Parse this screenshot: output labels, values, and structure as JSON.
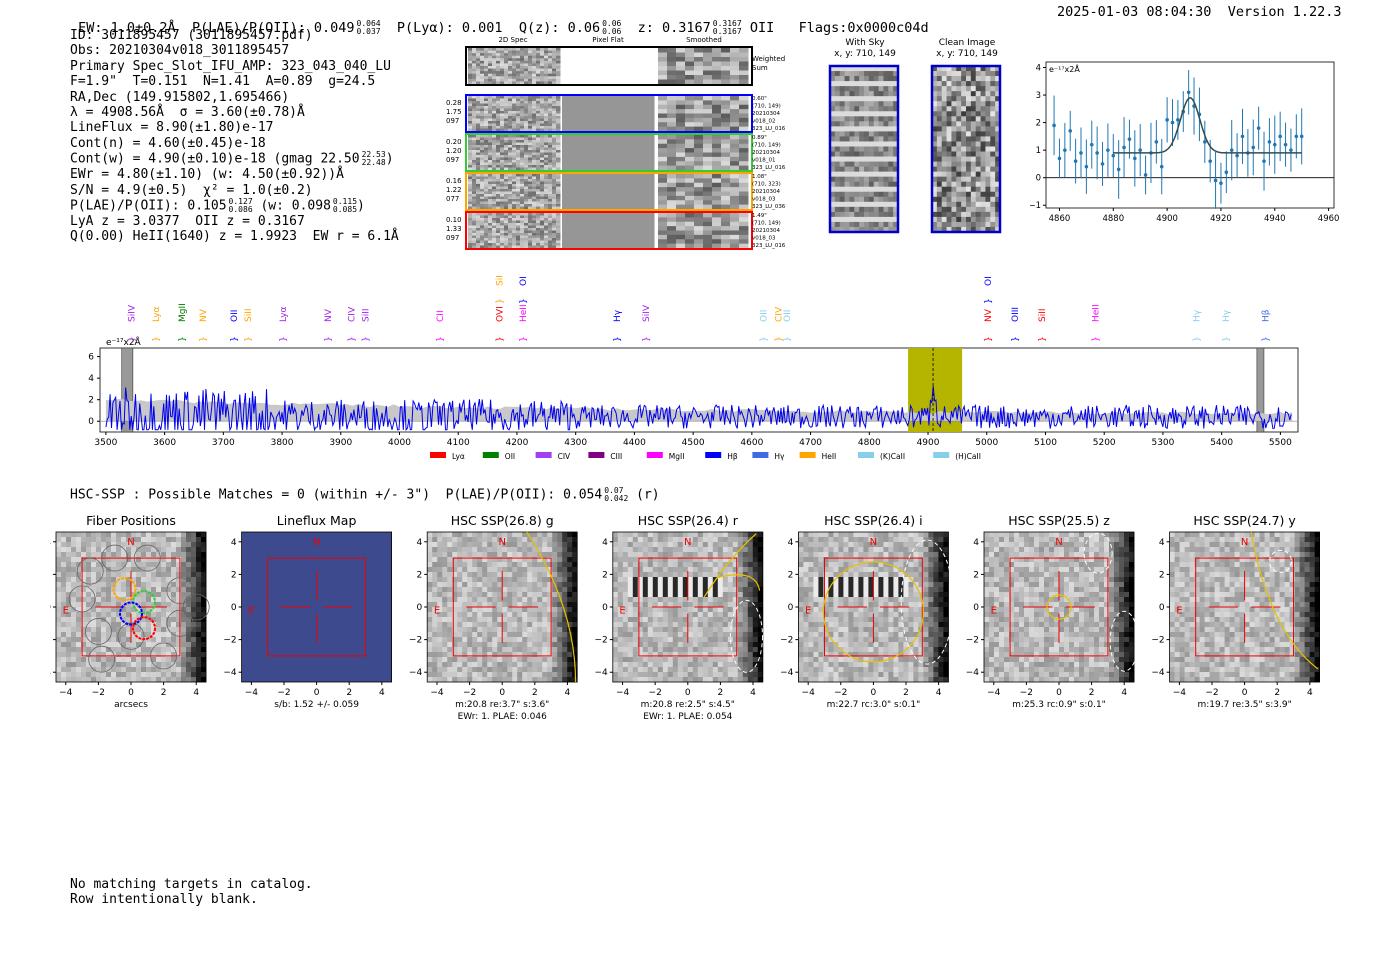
{
  "header": {
    "ew": "EW: 1.0±0.2Å",
    "plae_label": "P(LAE)/P(OII): 0.049",
    "plae_hi": "0.064",
    "plae_lo": "0.037",
    "plya": "P(Lyα): 0.001",
    "qz_label": "Q(z): 0.06",
    "qz_hi": "0.06",
    "qz_lo": "0.06",
    "z_label": "z: 0.3167",
    "z_hi": "0.3167",
    "z_lo": "0.3167",
    "z_line": "OII",
    "flags": "Flags:0x0000c04d",
    "datetime": "2025-01-03 08:04:30",
    "version": "Version 1.22.3"
  },
  "info": {
    "l1": "ID: 3011895457 (3011895457.pdf)",
    "l2": "Obs: 20210304v018_3011895457",
    "l3": "Primary Spec_Slot_IFU_AMP: 323_043_040_LU",
    "l4": "F=1.9\"  T=0.151  N=1.41  A=0.89  g=24.5",
    "l5": "RA,Dec (149.915802,1.695466)",
    "l6": "λ = 4908.56Å  σ = 3.60(±0.78)Å",
    "l7": "LineFlux = 8.90(±1.80)e-17",
    "l8": "Cont(n) = 4.60(±0.45)e-18",
    "l9": "Cont(w) = 4.90(±0.10)e-18 (gmag 22.50",
    "l9_hi": "22.53",
    "l9_lo": "22.48",
    "l9_end": ")",
    "l10": "EWr = 4.80(±1.10) (w: 4.50(±0.92))Å",
    "l11": "S/N = 4.9(±0.5)  χ² = 1.0(±0.2)",
    "l12": "P(LAE)/P(OII): 0.105",
    "l12_hi": "0.127",
    "l12_lo": "0.086",
    "l12_mid": " (w: 0.098",
    "l12_hi2": "0.115",
    "l12_lo2": "0.085",
    "l12_end": ")",
    "l13": "LyA z = 3.0377  OII z = 0.3167",
    "l14": "Q(0.00) HeII(1640) z = 1.9923  EW r = 6.1Å"
  },
  "cutouts": {
    "col_titles": [
      "2D Spec",
      "Pixel Flat",
      "Smoothed"
    ],
    "weighted_label": "Weighted\nSum",
    "rows": [
      {
        "color": "#0000ff",
        "left": [
          "0.28",
          "1.75",
          "097"
        ],
        "right": [
          "0.60\"",
          "(710, 149)",
          "20210304",
          "v018_02",
          "323_LU_016"
        ]
      },
      {
        "color": "#33cc33",
        "left": [
          "0.20",
          "1.20",
          "097"
        ],
        "right": [
          "0.89\"",
          "(710, 149)",
          "20210304",
          "v018_01",
          "323_LU_016"
        ]
      },
      {
        "color": "#ffa500",
        "left": [
          "0.16",
          "1.22",
          "077"
        ],
        "right": [
          "1.08\"",
          "(710, 323)",
          "20210304",
          "v018_03",
          "323_LU_036"
        ]
      },
      {
        "color": "#ff0000",
        "left": [
          "0.10",
          "1.33",
          "097"
        ],
        "right": [
          "1.49\"",
          "(710, 149)",
          "20210304",
          "v018_03",
          "323_LU_016"
        ]
      }
    ]
  },
  "sky": {
    "title1": "With Sky",
    "sub1": "x, y: 710, 149",
    "title2": "Clean Image",
    "sub2": "x, y: 710, 149"
  },
  "fit_chart": {
    "type": "line",
    "ylabel": "e⁻¹⁷x2Å",
    "xlim": [
      4855,
      4962
    ],
    "ylim": [
      -1.1,
      4.2
    ],
    "xticks": [
      4860,
      4880,
      4900,
      4920,
      4940,
      4960
    ],
    "yticks": [
      -1,
      0,
      1,
      2,
      3,
      4
    ],
    "points": [
      [
        4858,
        1.9
      ],
      [
        4860,
        0.7
      ],
      [
        4862,
        1.0
      ],
      [
        4864,
        1.7
      ],
      [
        4866,
        0.6
      ],
      [
        4868,
        0.9
      ],
      [
        4870,
        0.4
      ],
      [
        4872,
        1.2
      ],
      [
        4874,
        0.9
      ],
      [
        4876,
        0.5
      ],
      [
        4878,
        1.0
      ],
      [
        4880,
        0.8
      ],
      [
        4882,
        0.3
      ],
      [
        4884,
        1.1
      ],
      [
        4886,
        1.4
      ],
      [
        4888,
        0.7
      ],
      [
        4890,
        1.0
      ],
      [
        4892,
        0.1
      ],
      [
        4894,
        0.9
      ],
      [
        4896,
        1.3
      ],
      [
        4898,
        0.4
      ],
      [
        4900,
        2.1
      ],
      [
        4902,
        2.0
      ],
      [
        4904,
        2.1
      ],
      [
        4906,
        2.4
      ],
      [
        4908,
        3.1
      ],
      [
        4910,
        2.6
      ],
      [
        4912,
        2.3
      ],
      [
        4914,
        1.3
      ],
      [
        4916,
        0.6
      ],
      [
        4918,
        -0.1
      ],
      [
        4920,
        -0.2
      ],
      [
        4922,
        0.2
      ],
      [
        4924,
        1.0
      ],
      [
        4926,
        0.8
      ],
      [
        4928,
        1.5
      ],
      [
        4930,
        0.9
      ],
      [
        4932,
        1.1
      ],
      [
        4934,
        1.8
      ],
      [
        4936,
        0.6
      ],
      [
        4938,
        1.3
      ],
      [
        4940,
        1.2
      ],
      [
        4942,
        1.5
      ],
      [
        4944,
        1.2
      ],
      [
        4946,
        1.0
      ],
      [
        4948,
        1.5
      ],
      [
        4950,
        1.5
      ]
    ],
    "fit": {
      "center": 4908.56,
      "sigma": 3.6,
      "amp": 2.0,
      "base": 0.9
    }
  },
  "spectrum": {
    "type": "line",
    "ylabel": "e⁻¹⁷x2Å",
    "xlim": [
      3490,
      5530
    ],
    "ylim": [
      -1,
      6.8
    ],
    "xticks": [
      3500,
      3600,
      3700,
      3800,
      3900,
      4000,
      4100,
      4200,
      4300,
      4400,
      4500,
      4600,
      4700,
      4800,
      4900,
      5000,
      5100,
      5200,
      5300,
      5400,
      5500
    ],
    "yticks": [
      0,
      2,
      4,
      6
    ],
    "highlight": [
      4866,
      4958
    ],
    "line_at": 4908.56,
    "mask_regions": [
      [
        3527,
        3546
      ],
      [
        5460,
        5472
      ]
    ],
    "line_markers": [
      {
        "x": 3544,
        "label": "SiIV",
        "color": "#a020f0"
      },
      {
        "x": 3585,
        "label": "Lyα",
        "color": "#ffa500"
      },
      {
        "x": 3630,
        "label": "MgII",
        "color": "#008000"
      },
      {
        "x": 3665,
        "label": "NV",
        "color": "#ffa500"
      },
      {
        "x": 3718,
        "label": "OII",
        "color": "#0000ff"
      },
      {
        "x": 3742,
        "label": "SiII",
        "color": "#ffa500"
      },
      {
        "x": 3802,
        "label": "Lyα",
        "color": "#a020f0"
      },
      {
        "x": 3878,
        "label": "NV",
        "color": "#a020f0"
      },
      {
        "x": 3918,
        "label": "CIV",
        "color": "#a020f0"
      },
      {
        "x": 3942,
        "label": "SiII",
        "color": "#a020f0"
      },
      {
        "x": 4069,
        "label": "CII",
        "color": "#ff00ff"
      },
      {
        "x": 4170,
        "label": "OVI",
        "color": "#ff0000"
      },
      {
        "x": 4210,
        "label": "HeII",
        "color": "#ff00ff"
      },
      {
        "x": 4370,
        "label": "Hγ",
        "color": "#0000ff"
      },
      {
        "x": 4420,
        "label": "SiIV",
        "color": "#a020f0"
      },
      {
        "x": 4620,
        "label": "OII",
        "color": "#87ceeb"
      },
      {
        "x": 4645,
        "label": "CIV",
        "color": "#ffa500"
      },
      {
        "x": 4660,
        "label": "OII",
        "color": "#87ceeb"
      },
      {
        "x": 5002,
        "label": "NV",
        "color": "#ff0000"
      },
      {
        "x": 5048,
        "label": "OIII",
        "color": "#0000ff"
      },
      {
        "x": 5094,
        "label": "SiII",
        "color": "#ff0000"
      },
      {
        "x": 5185,
        "label": "HeII",
        "color": "#ff00ff"
      },
      {
        "x": 5357,
        "label": "Hγ",
        "color": "#87ceeb"
      },
      {
        "x": 5407,
        "label": "Hγ",
        "color": "#87ceeb"
      },
      {
        "x": 5475,
        "label": "Hβ",
        "color": "#4169e1"
      }
    ],
    "top_markers": [
      {
        "x": 4170,
        "label": "SiIV",
        "color": "#ffa500"
      },
      {
        "x": 4210,
        "label": "OII",
        "color": "#0000ff"
      },
      {
        "x": 5002,
        "label": "OIII",
        "color": "#0000ff"
      }
    ],
    "legend": [
      {
        "label": "Lyα",
        "color": "#ff0000"
      },
      {
        "label": "OII",
        "color": "#008000"
      },
      {
        "label": "CIV",
        "color": "#a040f0"
      },
      {
        "label": "CIII",
        "color": "#800080"
      },
      {
        "label": "MgII",
        "color": "#ff00ff"
      },
      {
        "label": "Hβ",
        "color": "#0000ff"
      },
      {
        "label": "Hγ",
        "color": "#4169e1"
      },
      {
        "label": "HeII",
        "color": "#ffa500"
      },
      {
        "label": "(K)CaII",
        "color": "#87ceeb"
      },
      {
        "label": "(H)CaII",
        "color": "#87ceeb"
      }
    ]
  },
  "hsc": {
    "summary": "HSC-SSP : Possible Matches = 0 (within +/- 3\")  P(LAE)/P(OII): 0.054",
    "sum_hi": "0.07",
    "sum_lo": "0.042",
    "sum_end": " (r)",
    "panels": [
      {
        "title": "Fiber Positions",
        "c1": "arcsecs",
        "c2": ""
      },
      {
        "title": "Lineflux Map",
        "c1": "s/b: 1.52 +/- 0.059",
        "c2": ""
      },
      {
        "title": "HSC SSP(26.8) g",
        "c1": "m:20.8  re:3.7\"  s:3.6\"",
        "c2": "EWr: 1. PLAE: 0.046"
      },
      {
        "title": "HSC SSP(26.4) r",
        "c1": "m:20.8  re:2.5\"  s:4.5\"",
        "c2": "EWr: 1. PLAE: 0.054"
      },
      {
        "title": "HSC SSP(26.4) i",
        "c1": "m:22.7 rc:3.0\"  s:0.1\"",
        "c2": ""
      },
      {
        "title": "HSC SSP(25.5) z",
        "c1": "m:25.3 rc:0.9\"  s:0.1\"",
        "c2": ""
      },
      {
        "title": "HSC SSP(24.7) y",
        "c1": "m:19.7  re:3.5\"  s:3.9\"",
        "c2": ""
      }
    ],
    "ticks": [
      "-4",
      "-2",
      "0",
      "2",
      "4"
    ],
    "north": "N",
    "east": "E"
  },
  "footer": {
    "l1": "No matching targets in catalog.",
    "l2": "Row intentionally blank."
  }
}
